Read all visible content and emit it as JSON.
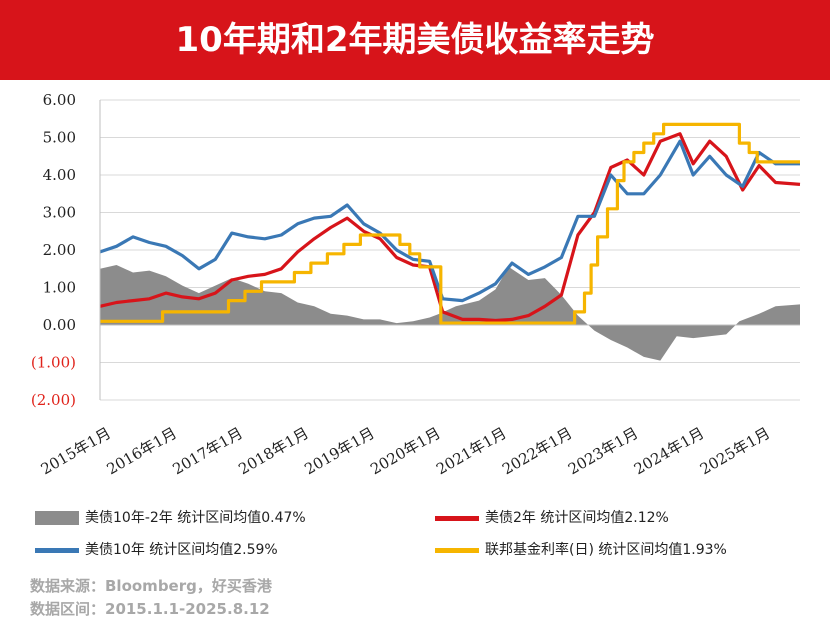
{
  "header": {
    "title": "10年期和2年期美债收益率走势"
  },
  "chart_data": {
    "type": "line",
    "title": "10年期和2年期美债收益率走势",
    "ylim": [
      -2,
      6
    ],
    "yticks": [
      {
        "value": 6,
        "label": "6.00"
      },
      {
        "value": 5,
        "label": "5.00"
      },
      {
        "value": 4,
        "label": "4.00"
      },
      {
        "value": 3,
        "label": "3.00"
      },
      {
        "value": 2,
        "label": "2.00"
      },
      {
        "value": 1,
        "label": "1.00"
      },
      {
        "value": 0,
        "label": "0.00"
      },
      {
        "value": -1,
        "label": "(1.00)"
      },
      {
        "value": -2,
        "label": "(2.00)"
      }
    ],
    "xlim": [
      2015.0,
      2025.62
    ],
    "xticks": [
      {
        "value": 2015,
        "label": "2015年1月"
      },
      {
        "value": 2016,
        "label": "2016年1月"
      },
      {
        "value": 2017,
        "label": "2017年1月"
      },
      {
        "value": 2018,
        "label": "2018年1月"
      },
      {
        "value": 2019,
        "label": "2019年1月"
      },
      {
        "value": 2020,
        "label": "2020年1月"
      },
      {
        "value": 2021,
        "label": "2021年1月"
      },
      {
        "value": 2022,
        "label": "2022年1月"
      },
      {
        "value": 2023,
        "label": "2023年1月"
      },
      {
        "value": 2024,
        "label": "2024年1月"
      },
      {
        "value": 2025,
        "label": "2025年1月"
      }
    ],
    "grid": true,
    "legend_position": "bottom",
    "series": [
      {
        "name": "美债10年-2年 统计区间均值0.47%",
        "type": "area",
        "color": "#8c8c8c",
        "points": [
          [
            2015.0,
            1.5
          ],
          [
            2015.25,
            1.6
          ],
          [
            2015.5,
            1.4
          ],
          [
            2015.75,
            1.45
          ],
          [
            2016.0,
            1.3
          ],
          [
            2016.25,
            1.05
          ],
          [
            2016.5,
            0.85
          ],
          [
            2016.75,
            1.05
          ],
          [
            2017.0,
            1.25
          ],
          [
            2017.25,
            1.1
          ],
          [
            2017.5,
            0.9
          ],
          [
            2017.75,
            0.85
          ],
          [
            2018.0,
            0.6
          ],
          [
            2018.25,
            0.5
          ],
          [
            2018.5,
            0.3
          ],
          [
            2018.75,
            0.25
          ],
          [
            2019.0,
            0.15
          ],
          [
            2019.25,
            0.15
          ],
          [
            2019.5,
            0.05
          ],
          [
            2019.75,
            0.1
          ],
          [
            2020.0,
            0.2
          ],
          [
            2020.15,
            0.3
          ],
          [
            2020.4,
            0.5
          ],
          [
            2020.75,
            0.65
          ],
          [
            2021.0,
            0.95
          ],
          [
            2021.2,
            1.55
          ],
          [
            2021.5,
            1.2
          ],
          [
            2021.75,
            1.25
          ],
          [
            2022.0,
            0.8
          ],
          [
            2022.25,
            0.25
          ],
          [
            2022.5,
            -0.15
          ],
          [
            2022.75,
            -0.4
          ],
          [
            2023.0,
            -0.6
          ],
          [
            2023.25,
            -0.85
          ],
          [
            2023.5,
            -0.95
          ],
          [
            2023.75,
            -0.3
          ],
          [
            2024.0,
            -0.35
          ],
          [
            2024.25,
            -0.3
          ],
          [
            2024.5,
            -0.25
          ],
          [
            2024.7,
            0.1
          ],
          [
            2025.0,
            0.3
          ],
          [
            2025.25,
            0.5
          ],
          [
            2025.62,
            0.55
          ]
        ]
      },
      {
        "name": "美债2年 统计区间均值2.12%",
        "type": "line",
        "color": "#d7141a",
        "points": [
          [
            2015.0,
            0.5
          ],
          [
            2015.25,
            0.6
          ],
          [
            2015.5,
            0.65
          ],
          [
            2015.75,
            0.7
          ],
          [
            2016.0,
            0.85
          ],
          [
            2016.25,
            0.75
          ],
          [
            2016.5,
            0.7
          ],
          [
            2016.75,
            0.85
          ],
          [
            2017.0,
            1.2
          ],
          [
            2017.25,
            1.3
          ],
          [
            2017.5,
            1.35
          ],
          [
            2017.75,
            1.5
          ],
          [
            2018.0,
            1.95
          ],
          [
            2018.25,
            2.3
          ],
          [
            2018.5,
            2.6
          ],
          [
            2018.75,
            2.85
          ],
          [
            2019.0,
            2.5
          ],
          [
            2019.25,
            2.3
          ],
          [
            2019.5,
            1.8
          ],
          [
            2019.75,
            1.6
          ],
          [
            2020.0,
            1.55
          ],
          [
            2020.2,
            0.35
          ],
          [
            2020.5,
            0.15
          ],
          [
            2020.75,
            0.15
          ],
          [
            2021.0,
            0.12
          ],
          [
            2021.25,
            0.15
          ],
          [
            2021.5,
            0.25
          ],
          [
            2021.75,
            0.5
          ],
          [
            2022.0,
            0.8
          ],
          [
            2022.25,
            2.4
          ],
          [
            2022.5,
            3.0
          ],
          [
            2022.75,
            4.2
          ],
          [
            2023.0,
            4.4
          ],
          [
            2023.25,
            4.0
          ],
          [
            2023.5,
            4.9
          ],
          [
            2023.8,
            5.1
          ],
          [
            2024.0,
            4.3
          ],
          [
            2024.25,
            4.9
          ],
          [
            2024.5,
            4.5
          ],
          [
            2024.75,
            3.6
          ],
          [
            2025.0,
            4.25
          ],
          [
            2025.25,
            3.8
          ],
          [
            2025.62,
            3.75
          ]
        ]
      },
      {
        "name": "美债10年 统计区间均值2.59%",
        "type": "line",
        "color": "#3a78b5",
        "points": [
          [
            2015.0,
            1.95
          ],
          [
            2015.25,
            2.1
          ],
          [
            2015.5,
            2.35
          ],
          [
            2015.75,
            2.2
          ],
          [
            2016.0,
            2.1
          ],
          [
            2016.25,
            1.85
          ],
          [
            2016.5,
            1.5
          ],
          [
            2016.75,
            1.75
          ],
          [
            2017.0,
            2.45
          ],
          [
            2017.25,
            2.35
          ],
          [
            2017.5,
            2.3
          ],
          [
            2017.75,
            2.4
          ],
          [
            2018.0,
            2.7
          ],
          [
            2018.25,
            2.85
          ],
          [
            2018.5,
            2.9
          ],
          [
            2018.75,
            3.2
          ],
          [
            2019.0,
            2.7
          ],
          [
            2019.25,
            2.45
          ],
          [
            2019.5,
            2.0
          ],
          [
            2019.75,
            1.75
          ],
          [
            2020.0,
            1.7
          ],
          [
            2020.2,
            0.7
          ],
          [
            2020.5,
            0.65
          ],
          [
            2020.75,
            0.85
          ],
          [
            2021.0,
            1.1
          ],
          [
            2021.25,
            1.65
          ],
          [
            2021.5,
            1.35
          ],
          [
            2021.75,
            1.55
          ],
          [
            2022.0,
            1.8
          ],
          [
            2022.25,
            2.9
          ],
          [
            2022.5,
            2.9
          ],
          [
            2022.75,
            4.0
          ],
          [
            2023.0,
            3.5
          ],
          [
            2023.25,
            3.5
          ],
          [
            2023.5,
            4.0
          ],
          [
            2023.8,
            4.9
          ],
          [
            2024.0,
            4.0
          ],
          [
            2024.25,
            4.5
          ],
          [
            2024.5,
            4.0
          ],
          [
            2024.75,
            3.7
          ],
          [
            2025.0,
            4.6
          ],
          [
            2025.25,
            4.3
          ],
          [
            2025.62,
            4.3
          ]
        ]
      },
      {
        "name": "联邦基金利率(日) 统计区间均值1.93%",
        "type": "step",
        "color": "#f6b500",
        "points": [
          [
            2015.0,
            0.1
          ],
          [
            2015.95,
            0.1
          ],
          [
            2015.95,
            0.35
          ],
          [
            2016.95,
            0.35
          ],
          [
            2016.95,
            0.65
          ],
          [
            2017.2,
            0.65
          ],
          [
            2017.2,
            0.9
          ],
          [
            2017.45,
            0.9
          ],
          [
            2017.45,
            1.15
          ],
          [
            2017.95,
            1.15
          ],
          [
            2017.95,
            1.4
          ],
          [
            2018.2,
            1.4
          ],
          [
            2018.2,
            1.65
          ],
          [
            2018.45,
            1.65
          ],
          [
            2018.45,
            1.9
          ],
          [
            2018.7,
            1.9
          ],
          [
            2018.7,
            2.15
          ],
          [
            2018.95,
            2.15
          ],
          [
            2018.95,
            2.4
          ],
          [
            2019.55,
            2.4
          ],
          [
            2019.55,
            2.15
          ],
          [
            2019.7,
            2.15
          ],
          [
            2019.7,
            1.9
          ],
          [
            2019.85,
            1.9
          ],
          [
            2019.85,
            1.55
          ],
          [
            2020.17,
            1.55
          ],
          [
            2020.17,
            0.05
          ],
          [
            2022.2,
            0.05
          ],
          [
            2022.2,
            0.35
          ],
          [
            2022.35,
            0.35
          ],
          [
            2022.35,
            0.85
          ],
          [
            2022.45,
            0.85
          ],
          [
            2022.45,
            1.6
          ],
          [
            2022.55,
            1.6
          ],
          [
            2022.55,
            2.35
          ],
          [
            2022.7,
            2.35
          ],
          [
            2022.7,
            3.1
          ],
          [
            2022.85,
            3.1
          ],
          [
            2022.85,
            3.85
          ],
          [
            2022.95,
            3.85
          ],
          [
            2022.95,
            4.35
          ],
          [
            2023.1,
            4.35
          ],
          [
            2023.1,
            4.6
          ],
          [
            2023.25,
            4.6
          ],
          [
            2023.25,
            4.85
          ],
          [
            2023.4,
            4.85
          ],
          [
            2023.4,
            5.1
          ],
          [
            2023.55,
            5.1
          ],
          [
            2023.55,
            5.35
          ],
          [
            2024.7,
            5.35
          ],
          [
            2024.7,
            4.85
          ],
          [
            2024.85,
            4.85
          ],
          [
            2024.85,
            4.6
          ],
          [
            2024.97,
            4.6
          ],
          [
            2024.97,
            4.35
          ],
          [
            2025.62,
            4.35
          ]
        ]
      }
    ]
  },
  "legend": {
    "items": [
      {
        "label": "美债10年-2年 统计区间均值0.47%",
        "color": "#8c8c8c",
        "kind": "box"
      },
      {
        "label": "美债2年 统计区间均值2.12%",
        "color": "#d7141a",
        "kind": "line"
      },
      {
        "label": "美债10年 统计区间均值2.59%",
        "color": "#3a78b5",
        "kind": "line"
      },
      {
        "label": "联邦基金利率(日) 统计区间均值1.93%",
        "color": "#f6b500",
        "kind": "line"
      }
    ]
  },
  "source": {
    "line1": "数据来源：Bloomberg，好买香港",
    "line2": "数据区间：2015.1.1-2025.8.12"
  }
}
